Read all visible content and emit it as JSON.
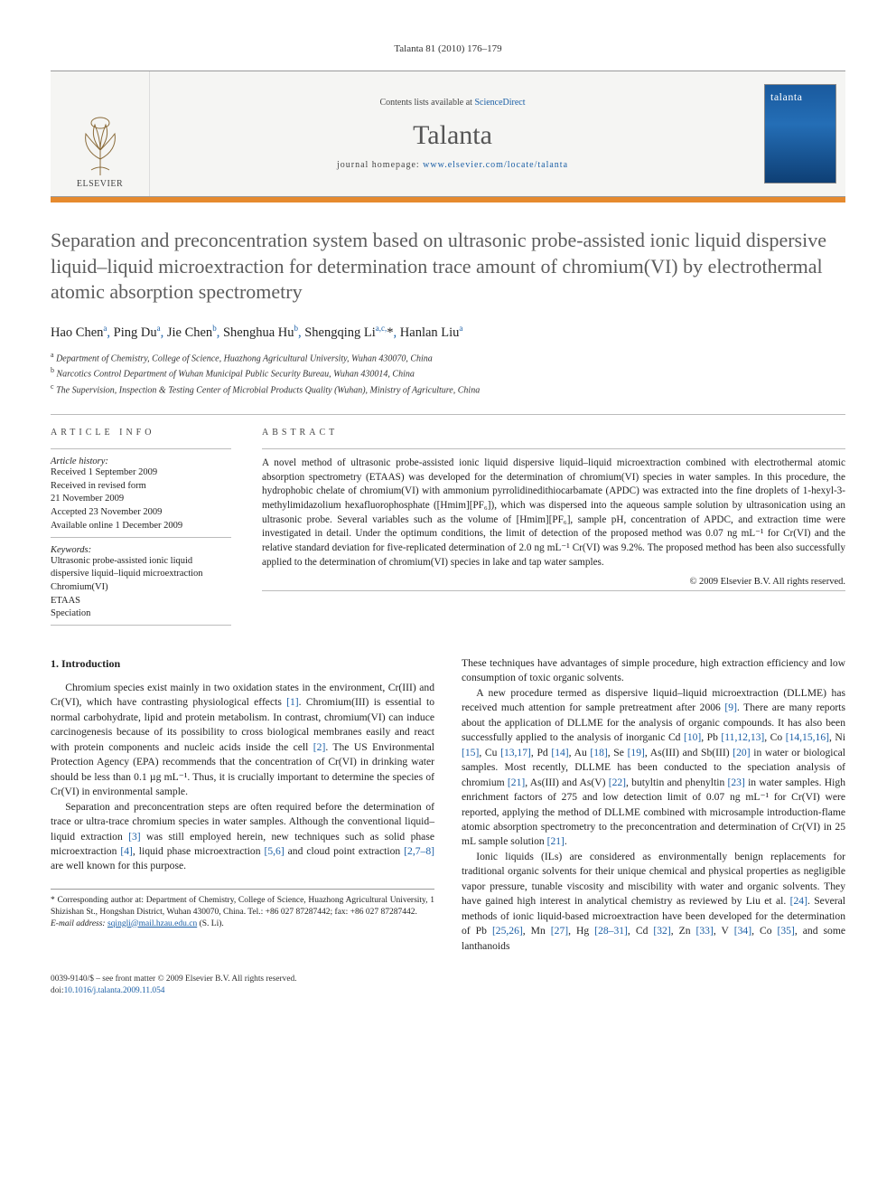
{
  "citation": "Talanta 81 (2010) 176–179",
  "masthead": {
    "contents_prefix": "Contents lists available at ",
    "contents_link": "ScienceDirect",
    "journal": "Talanta",
    "homepage_prefix": "journal homepage: ",
    "homepage_url": "www.elsevier.com/locate/talanta",
    "publisher_label": "ELSEVIER",
    "cover_text": "talanta"
  },
  "colors": {
    "orange_bar": "#e68a2e",
    "link": "#1b5fa6",
    "title_gray": "#5c5c5c",
    "cover_gradient_top": "#1a5a9e",
    "cover_gradient_bot": "#0e3f75"
  },
  "title": "Separation and preconcentration system based on ultrasonic probe-assisted ionic liquid dispersive liquid–liquid microextraction for determination trace amount of chromium(VI) by electrothermal atomic absorption spectrometry",
  "authors_html": "Hao Chen<sup>a</sup><span class=\"sep\">,</span> Ping Du<sup>a</sup><span class=\"sep\">,</span> Jie Chen<sup>b</sup><span class=\"sep\">,</span> Shenghua Hu<sup>b</sup><span class=\"sep\">,</span> Shengqing Li<sup>a,c,</sup>*<span class=\"sep\">,</span> Hanlan Liu<sup>a</sup>",
  "affiliations": [
    "a Department of Chemistry, College of Science, Huazhong Agricultural University, Wuhan 430070, China",
    "b Narcotics Control Department of Wuhan Municipal Public Security Bureau, Wuhan 430014, China",
    "c The Supervision, Inspection & Testing Center of Microbial Products Quality (Wuhan), Ministry of Agriculture, China"
  ],
  "article_info": {
    "section_label": "article info",
    "history_label": "Article history:",
    "history": [
      "Received 1 September 2009",
      "Received in revised form",
      "21 November 2009",
      "Accepted 23 November 2009",
      "Available online 1 December 2009"
    ],
    "keywords_label": "Keywords:",
    "keywords": [
      "Ultrasonic probe-assisted ionic liquid",
      "dispersive liquid–liquid microextraction",
      "Chromium(VI)",
      "ETAAS",
      "Speciation"
    ]
  },
  "abstract": {
    "section_label": "abstract",
    "text": "A novel method of ultrasonic probe-assisted ionic liquid dispersive liquid–liquid microextraction combined with electrothermal atomic absorption spectrometry (ETAAS) was developed for the determination of chromium(VI) species in water samples. In this procedure, the hydrophobic chelate of chromium(VI) with ammonium pyrrolidinedithiocarbamate (APDC) was extracted into the fine droplets of 1-hexyl-3-methylimidazolium hexafluorophosphate ([Hmim][PF₆]), which was dispersed into the aqueous sample solution by ultrasonication using an ultrasonic probe. Several variables such as the volume of [Hmim][PF₆], sample pH, concentration of APDC, and extraction time were investigated in detail. Under the optimum conditions, the limit of detection of the proposed method was 0.07 ng mL⁻¹ for Cr(VI) and the relative standard deviation for five-replicated determination of 2.0 ng mL⁻¹ Cr(VI) was 9.2%. The proposed method has been also successfully applied to the determination of chromium(VI) species in lake and tap water samples.",
    "copyright": "© 2009 Elsevier B.V. All rights reserved."
  },
  "body": {
    "h_intro": "1. Introduction",
    "p1": "Chromium species exist mainly in two oxidation states in the environment, Cr(III) and Cr(VI), which have contrasting physiological effects [1]. Chromium(III) is essential to normal carbohydrate, lipid and protein metabolism. In contrast, chromium(VI) can induce carcinogenesis because of its possibility to cross biological membranes easily and react with protein components and nucleic acids inside the cell [2]. The US Environmental Protection Agency (EPA) recommends that the concentration of Cr(VI) in drinking water should be less than 0.1 µg mL⁻¹. Thus, it is crucially important to determine the species of Cr(VI) in environmental sample.",
    "p2": "Separation and preconcentration steps are often required before the determination of trace or ultra-trace chromium species in water samples. Although the conventional liquid–liquid extraction [3] was still employed herein, new techniques such as solid phase microextraction [4], liquid phase microextraction [5,6] and cloud point extraction [2,7–8] are well known for this purpose. These techniques have advantages of simple procedure, high extraction efficiency and low consumption of toxic organic solvents.",
    "p3": "A new procedure termed as dispersive liquid–liquid microextraction (DLLME) has received much attention for sample pretreatment after 2006 [9]. There are many reports about the application of DLLME for the analysis of organic compounds. It has also been successfully applied to the analysis of inorganic Cd [10], Pb [11,12,13], Co [14,15,16], Ni [15], Cu [13,17], Pd [14], Au [18], Se [19], As(III) and Sb(III) [20] in water or biological samples. Most recently, DLLME has been conducted to the speciation analysis of chromium [21], As(III) and As(V) [22], butyltin and phenyltin [23] in water samples. High enrichment factors of 275 and low detection limit of 0.07 ng mL⁻¹ for Cr(VI) were reported, applying the method of DLLME combined with microsample introduction-flame atomic absorption spectrometry to the preconcentration and determination of Cr(VI) in 25 mL sample solution [21].",
    "p4": "Ionic liquids (ILs) are considered as environmentally benign replacements for traditional organic solvents for their unique chemical and physical properties as negligible vapor pressure, tunable viscosity and miscibility with water and organic solvents. They have gained high interest in analytical chemistry as reviewed by Liu et al. [24]. Several methods of ionic liquid-based microextraction have been developed for the determination of Pb [25,26], Mn [27], Hg [28–31], Cd [32], Zn [33], V [34], Co [35], and some lanthanoids"
  },
  "footnote": {
    "corr": "* Corresponding author at: Department of Chemistry, College of Science, Huazhong Agricultural University, 1 Shizishan St., Hongshan District, Wuhan 430070, China. Tel.: +86 027 87287442; fax: +86 027 87287442.",
    "email_label": "E-mail address: ",
    "email": "sqingli@mail.hzau.edu.cn",
    "email_suffix": " (S. Li)."
  },
  "footer": {
    "line1": "0039-9140/$ – see front matter © 2009 Elsevier B.V. All rights reserved.",
    "doi_label": "doi:",
    "doi": "10.1016/j.talanta.2009.11.054"
  }
}
